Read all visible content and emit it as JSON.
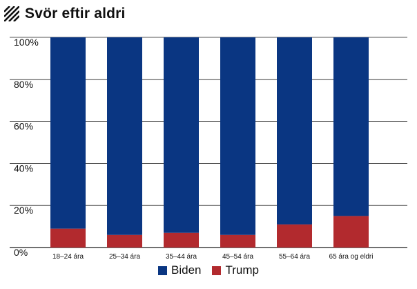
{
  "title": "Svör eftir aldri",
  "icon": "hatched-square-icon",
  "colors": {
    "Biden": "#0a3682",
    "Trump": "#b22a2e",
    "grid": "#1a1a1a"
  },
  "chart_data": {
    "type": "bar",
    "stacked": true,
    "title": "Svör eftir aldri",
    "xlabel": "",
    "ylabel": "",
    "ylim": [
      0,
      100
    ],
    "yticks": [
      "0%",
      "20%",
      "40%",
      "60%",
      "80%",
      "100%"
    ],
    "grid": true,
    "legend_position": "bottom-center",
    "categories": [
      "18–24 ára",
      "25–34 ára",
      "35–44 ára",
      "45–54 ára",
      "55–64 ára",
      "65 ára og eldri"
    ],
    "series": [
      {
        "name": "Biden",
        "values": [
          91,
          94,
          93,
          94,
          89,
          85
        ]
      },
      {
        "name": "Trump",
        "values": [
          9,
          6,
          7,
          6,
          11,
          15
        ]
      }
    ]
  }
}
